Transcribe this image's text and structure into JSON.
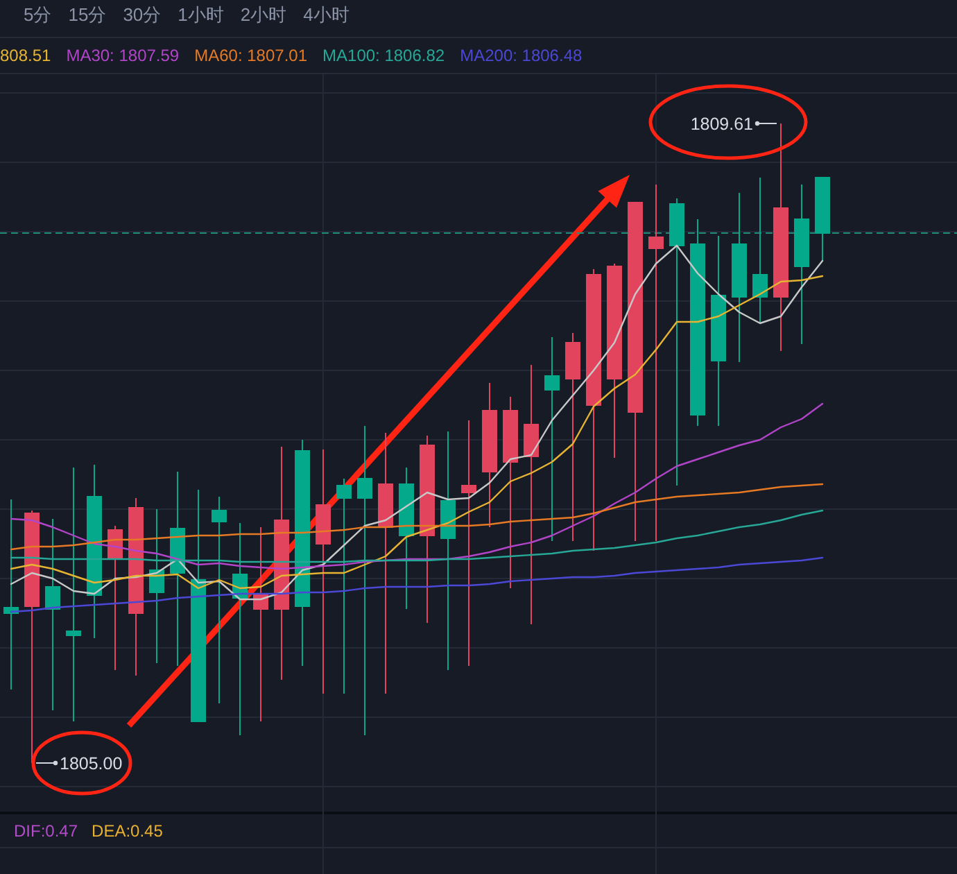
{
  "chart_data": {
    "type": "candlestick",
    "legend": "top",
    "grid": true,
    "categories": [
      null,
      null,
      null,
      null,
      null,
      null,
      null,
      null,
      null,
      null,
      null,
      null,
      null,
      null,
      null,
      null,
      null,
      null,
      null,
      null,
      null,
      null,
      null,
      null,
      null,
      null,
      null,
      null,
      null,
      null,
      null,
      null,
      null,
      null,
      null,
      null,
      null,
      null,
      null,
      null
    ],
    "ohlc": [
      [
        1806.12,
        1806.9,
        1805.53,
        1806.08
      ],
      [
        1806.13,
        1806.82,
        1805.0,
        1806.8
      ],
      [
        1806.27,
        1806.76,
        1805.38,
        1806.11
      ],
      [
        1805.95,
        1807.13,
        1805.3,
        1805.92
      ],
      [
        1806.92,
        1807.15,
        1805.9,
        1806.21
      ],
      [
        1806.47,
        1806.71,
        1805.67,
        1806.68
      ],
      [
        1806.08,
        1806.91,
        1805.63,
        1806.84
      ],
      [
        1806.39,
        1806.83,
        1805.72,
        1806.23
      ],
      [
        1806.69,
        1807.1,
        1805.7,
        1806.37
      ],
      [
        1806.32,
        1806.97,
        1805.3,
        1805.3
      ],
      [
        1806.82,
        1806.92,
        1805.43,
        1806.74
      ],
      [
        1806.36,
        1806.73,
        1805.2,
        1806.19
      ],
      [
        1806.11,
        1806.7,
        1805.3,
        1806.22
      ],
      [
        1806.11,
        1807.28,
        1805.6,
        1806.75
      ],
      [
        1807.25,
        1807.33,
        1805.7,
        1806.13
      ],
      [
        1806.58,
        1807.26,
        1805.5,
        1806.86
      ],
      [
        1807.0,
        1807.05,
        1805.5,
        1806.91
      ],
      [
        1807.05,
        1807.43,
        1805.2,
        1806.91
      ],
      [
        1806.7,
        1807.38,
        1805.5,
        1807.01
      ],
      [
        1807.01,
        1807.13,
        1806.11,
        1806.64
      ],
      [
        1806.64,
        1807.36,
        1806.01,
        1807.29
      ],
      [
        1806.89,
        1807.39,
        1805.67,
        1806.62
      ],
      [
        1806.95,
        1807.47,
        1805.7,
        1807.0
      ],
      [
        1807.1,
        1807.74,
        1806.7,
        1807.54
      ],
      [
        1807.17,
        1807.64,
        1806.26,
        1807.54
      ],
      [
        1807.21,
        1807.87,
        1806.0,
        1807.44
      ],
      [
        1807.79,
        1808.07,
        1806.6,
        1807.69
      ],
      [
        1807.77,
        1808.1,
        1806.6,
        1808.03
      ],
      [
        1807.58,
        1808.56,
        1806.53,
        1808.52
      ],
      [
        1807.77,
        1808.6,
        1807.2,
        1808.58
      ],
      [
        1807.53,
        1809.04,
        1806.6,
        1809.04
      ],
      [
        1808.71,
        1809.17,
        1806.6,
        1808.79
      ],
      [
        1809.03,
        1809.07,
        1807.0,
        1808.73
      ],
      [
        1808.74,
        1808.92,
        1807.43,
        1807.51
      ],
      [
        1808.37,
        1808.8,
        1807.43,
        1807.9
      ],
      [
        1808.74,
        1809.11,
        1807.89,
        1808.36
      ],
      [
        1808.52,
        1809.22,
        1808.17,
        1808.36
      ],
      [
        1808.36,
        1809.61,
        1807.97,
        1809.0
      ],
      [
        1808.92,
        1809.17,
        1808.02,
        1808.58
      ],
      [
        1809.22,
        1809.22,
        1808.62,
        1808.82
      ]
    ],
    "colors": [
      "#04a88a",
      "#e2445e",
      "#04a88a",
      "#04a88a",
      "#04a88a",
      "#e2445e",
      "#e2445e",
      "#04a88a",
      "#04a88a",
      "#04a88a",
      "#04a88a",
      "#04a88a",
      "#e2445e",
      "#e2445e",
      "#04a88a",
      "#e2445e",
      "#04a88a",
      "#04a88a",
      "#e2445e",
      "#04a88a",
      "#e2445e",
      "#04a88a",
      "#e2445e",
      "#e2445e",
      "#e2445e",
      "#e2445e",
      "#04a88a",
      "#e2445e",
      "#e2445e",
      "#e2445e",
      "#e2445e",
      "#e2445e",
      "#04a88a",
      "#04a88a",
      "#04a88a",
      "#04a88a",
      "#04a88a",
      "#e2445e",
      "#04a88a",
      "#04a88a"
    ],
    "series": [
      {
        "type": "line",
        "color": "#c8c8c8",
        "values": [
          1806.29,
          1806.37,
          1806.33,
          1806.24,
          1806.22,
          1806.33,
          1806.34,
          1806.37,
          1806.47,
          1806.3,
          1806.31,
          1806.18,
          1806.18,
          1806.23,
          1806.39,
          1806.43,
          1806.57,
          1806.71,
          1806.75,
          1806.85,
          1806.95,
          1806.9,
          1806.91,
          1807.02,
          1807.19,
          1807.22,
          1807.47,
          1807.65,
          1807.83,
          1808.03,
          1808.38,
          1808.6,
          1808.73,
          1808.53,
          1808.38,
          1808.25,
          1808.17,
          1808.22,
          1808.43,
          1808.62
        ]
      },
      {
        "type": "line",
        "name": "808.51",
        "color": "#e6b432",
        "values": [
          1806.4,
          1806.43,
          1806.4,
          1806.35,
          1806.3,
          1806.32,
          1806.35,
          1806.35,
          1806.36,
          1806.26,
          1806.32,
          1806.26,
          1806.27,
          1806.35,
          1806.36,
          1806.37,
          1806.37,
          1806.43,
          1806.49,
          1806.63,
          1806.68,
          1806.73,
          1806.81,
          1806.88,
          1807.03,
          1807.09,
          1807.17,
          1807.3,
          1807.57,
          1807.7,
          1807.8,
          1807.98,
          1808.18,
          1808.18,
          1808.22,
          1808.3,
          1808.38,
          1808.47,
          1808.48,
          1808.51
        ]
      },
      {
        "type": "line",
        "name": "MA30: 1807.59",
        "color": "#b244c8",
        "values": [
          1806.76,
          1806.75,
          1806.7,
          1806.64,
          1806.58,
          1806.56,
          1806.53,
          1806.51,
          1806.47,
          1806.43,
          1806.44,
          1806.42,
          1806.41,
          1806.4,
          1806.41,
          1806.42,
          1806.43,
          1806.45,
          1806.46,
          1806.47,
          1806.47,
          1806.47,
          1806.49,
          1806.52,
          1806.56,
          1806.59,
          1806.64,
          1806.71,
          1806.78,
          1806.87,
          1806.95,
          1807.05,
          1807.14,
          1807.19,
          1807.24,
          1807.29,
          1807.33,
          1807.42,
          1807.48,
          1807.59
        ]
      },
      {
        "type": "line",
        "name": "MA60: 1807.01",
        "color": "#e67a24",
        "values": [
          1806.54,
          1806.56,
          1806.56,
          1806.57,
          1806.59,
          1806.61,
          1806.61,
          1806.62,
          1806.63,
          1806.64,
          1806.64,
          1806.65,
          1806.65,
          1806.66,
          1806.66,
          1806.67,
          1806.68,
          1806.7,
          1806.7,
          1806.71,
          1806.71,
          1806.71,
          1806.71,
          1806.72,
          1806.74,
          1806.75,
          1806.76,
          1806.77,
          1806.8,
          1806.84,
          1806.88,
          1806.9,
          1806.92,
          1806.93,
          1806.94,
          1806.95,
          1806.97,
          1806.99,
          1807.0,
          1807.01
        ]
      },
      {
        "type": "line",
        "name": "MA100: 1806.82",
        "color": "#27a897",
        "values": [
          1806.48,
          1806.48,
          1806.47,
          1806.47,
          1806.47,
          1806.47,
          1806.47,
          1806.46,
          1806.46,
          1806.46,
          1806.46,
          1806.45,
          1806.45,
          1806.45,
          1806.45,
          1806.45,
          1806.45,
          1806.46,
          1806.46,
          1806.46,
          1806.46,
          1806.47,
          1806.47,
          1806.48,
          1806.49,
          1806.5,
          1806.51,
          1806.53,
          1806.54,
          1806.55,
          1806.57,
          1806.59,
          1806.62,
          1806.64,
          1806.67,
          1806.7,
          1806.72,
          1806.75,
          1806.79,
          1806.82
        ]
      },
      {
        "type": "line",
        "name": "MA200: 1806.48",
        "color": "#4c48d6",
        "values": [
          1806.09,
          1806.1,
          1806.12,
          1806.13,
          1806.14,
          1806.15,
          1806.16,
          1806.17,
          1806.19,
          1806.2,
          1806.21,
          1806.22,
          1806.22,
          1806.22,
          1806.23,
          1806.23,
          1806.24,
          1806.26,
          1806.27,
          1806.27,
          1806.27,
          1806.28,
          1806.28,
          1806.29,
          1806.31,
          1806.32,
          1806.33,
          1806.34,
          1806.34,
          1806.35,
          1806.37,
          1806.38,
          1806.39,
          1806.4,
          1806.41,
          1806.43,
          1806.44,
          1806.45,
          1806.46,
          1806.48
        ]
      }
    ],
    "yticks": [
      {
        "value": 1809.83,
        "label": null
      },
      {
        "value": 1809.33,
        "label": null
      },
      {
        "value": 1808.83,
        "label": null
      },
      {
        "value": 1808.33,
        "label": null
      },
      {
        "value": 1807.83,
        "label": null
      },
      {
        "value": 1807.33,
        "label": null
      },
      {
        "value": 1806.83,
        "label": null
      },
      {
        "value": 1806.33,
        "label": null
      },
      {
        "value": 1805.83,
        "label": null
      },
      {
        "value": 1805.33,
        "label": null
      },
      {
        "value": 1804.83,
        "label": null
      }
    ],
    "ref_lines": [
      {
        "axis": "y",
        "value": 1808.82,
        "color": "#1e8c78",
        "line_style": "dashed"
      }
    ],
    "annotations": [
      "5分",
      "15分",
      "30分",
      "1小时",
      "2小时",
      "4小时",
      "DIF:0.47",
      "DEA:0.45",
      "1805.00",
      "1809.61"
    ]
  }
}
